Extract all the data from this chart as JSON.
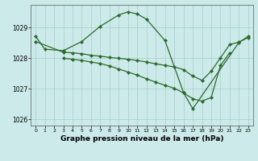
{
  "series": [
    {
      "name": "line1_peaks",
      "points": [
        [
          0,
          1028.72
        ],
        [
          1,
          1028.3
        ],
        [
          3,
          1028.25
        ],
        [
          5,
          1028.55
        ],
        [
          7,
          1029.05
        ],
        [
          9,
          1029.42
        ],
        [
          10,
          1029.52
        ],
        [
          11,
          1029.45
        ],
        [
          12,
          1029.28
        ],
        [
          14,
          1028.58
        ],
        [
          16,
          1026.88
        ],
        [
          17,
          1026.35
        ],
        [
          22,
          1028.52
        ],
        [
          23,
          1028.72
        ]
      ]
    },
    {
      "name": "line2_flat",
      "points": [
        [
          0,
          1028.55
        ],
        [
          3,
          1028.2
        ],
        [
          4,
          1028.18
        ],
        [
          5,
          1028.15
        ],
        [
          6,
          1028.1
        ],
        [
          7,
          1028.07
        ],
        [
          8,
          1028.03
        ],
        [
          9,
          1028.0
        ],
        [
          10,
          1027.97
        ],
        [
          11,
          1027.93
        ],
        [
          12,
          1027.88
        ],
        [
          13,
          1027.82
        ],
        [
          14,
          1027.77
        ],
        [
          15,
          1027.72
        ],
        [
          16,
          1027.63
        ],
        [
          17,
          1027.42
        ],
        [
          18,
          1027.28
        ],
        [
          19,
          1027.58
        ],
        [
          20,
          1028.02
        ],
        [
          21,
          1028.45
        ],
        [
          22,
          1028.53
        ],
        [
          23,
          1028.68
        ]
      ]
    },
    {
      "name": "line3_decline",
      "points": [
        [
          3,
          1028.0
        ],
        [
          4,
          1027.97
        ],
        [
          5,
          1027.93
        ],
        [
          6,
          1027.88
        ],
        [
          7,
          1027.83
        ],
        [
          8,
          1027.75
        ],
        [
          9,
          1027.65
        ],
        [
          10,
          1027.55
        ],
        [
          11,
          1027.45
        ],
        [
          12,
          1027.33
        ],
        [
          13,
          1027.22
        ],
        [
          14,
          1027.12
        ],
        [
          15,
          1027.02
        ],
        [
          16,
          1026.87
        ],
        [
          17,
          1026.68
        ],
        [
          18,
          1026.6
        ],
        [
          19,
          1026.72
        ],
        [
          20,
          1027.77
        ],
        [
          21,
          1028.18
        ]
      ]
    }
  ],
  "color": "#2a6a2a",
  "bg_color": "#cceaea",
  "grid_color": "#aacccc",
  "xlabel": "Graphe pression niveau de la mer (hPa)",
  "ylim": [
    1025.8,
    1029.75
  ],
  "xlim": [
    -0.5,
    23.5
  ],
  "yticks": [
    1026,
    1027,
    1028,
    1029
  ],
  "xticks": [
    0,
    1,
    2,
    3,
    4,
    5,
    6,
    7,
    8,
    9,
    10,
    11,
    12,
    13,
    14,
    15,
    16,
    17,
    18,
    19,
    20,
    21,
    22,
    23
  ],
  "figw": 3.2,
  "figh": 2.0,
  "dpi": 100
}
